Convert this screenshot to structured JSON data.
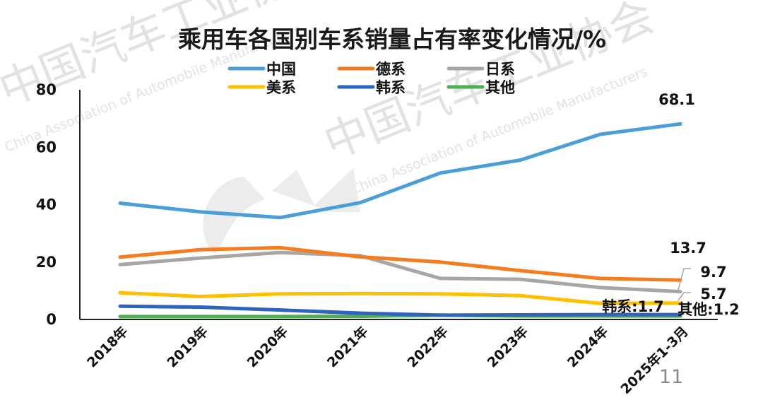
{
  "page_number": "11",
  "watermark": {
    "cn": "中国汽车工业协会",
    "en": "China Association of Automobile Manufacturers"
  },
  "colors": {
    "中国": "#4A9FD8",
    "德系": "#F57C1F",
    "日系": "#A6A6A6",
    "美系": "#FFC000",
    "韩系": "#2E63BE",
    "其他": "#4CAF50"
  },
  "chart_data": {
    "type": "line",
    "title": "乘用车各国别车系销量占有率变化情况/%",
    "xlabel": "",
    "ylabel": "",
    "categories": [
      "2018年",
      "2019年",
      "2020年",
      "2021年",
      "2022年",
      "2023年",
      "2024年",
      "2025年1-3月"
    ],
    "ylim": [
      0,
      80
    ],
    "yticks": [
      0,
      20,
      40,
      60,
      80
    ],
    "grid": false,
    "legend_position": "top",
    "series": [
      {
        "name": "中国",
        "values": [
          40.5,
          37.5,
          35.5,
          40.7,
          51.0,
          55.5,
          64.5,
          68.1
        ]
      },
      {
        "name": "德系",
        "values": [
          21.7,
          24.3,
          25.0,
          21.8,
          20.0,
          17.0,
          14.3,
          13.7
        ]
      },
      {
        "name": "日系",
        "values": [
          19.1,
          21.4,
          23.3,
          22.2,
          14.3,
          14.0,
          11.1,
          9.7
        ]
      },
      {
        "name": "美系",
        "values": [
          9.3,
          8.0,
          8.9,
          9.0,
          8.9,
          8.3,
          5.6,
          5.7
        ]
      },
      {
        "name": "韩系",
        "values": [
          4.6,
          4.3,
          3.3,
          2.2,
          1.5,
          1.6,
          1.7,
          1.7
        ]
      },
      {
        "name": "其他",
        "values": [
          1.0,
          1.0,
          1.0,
          1.1,
          1.5,
          1.2,
          1.2,
          1.2
        ]
      }
    ],
    "data_labels": [
      {
        "series": "中国",
        "text": "68.1"
      },
      {
        "series": "德系",
        "text": "13.7"
      },
      {
        "series": "日系",
        "text": "9.7"
      },
      {
        "series": "美系",
        "text": "5.7"
      },
      {
        "series": "韩系",
        "text": "韩系:1.7"
      },
      {
        "series": "其他",
        "text": "其他:1.2"
      }
    ]
  }
}
